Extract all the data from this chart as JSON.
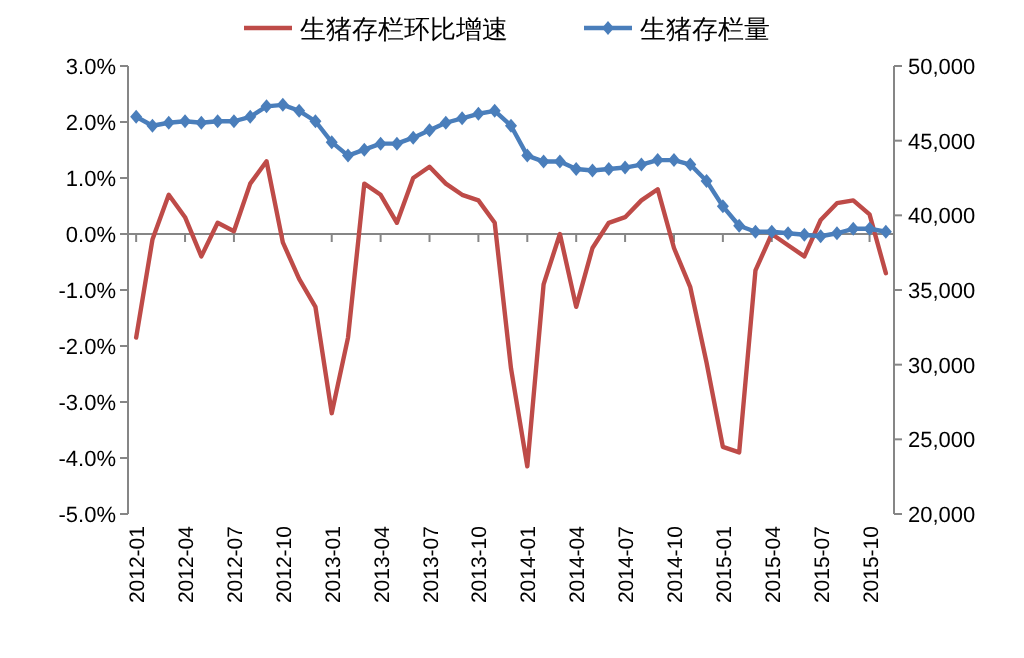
{
  "chart_data": {
    "type": "line",
    "categories": [
      "2012-01",
      null,
      null,
      "2012-04",
      null,
      null,
      "2012-07",
      null,
      null,
      "2012-10",
      null,
      null,
      "2013-01",
      null,
      null,
      "2013-04",
      null,
      null,
      "2013-07",
      null,
      null,
      "2013-10",
      null,
      null,
      "2014-01",
      null,
      null,
      "2014-04",
      null,
      null,
      "2014-07",
      null,
      null,
      "2014-10",
      null,
      null,
      "2015-01",
      null,
      null,
      "2015-04",
      null,
      null,
      "2015-07",
      null,
      null,
      "2015-10",
      null
    ],
    "series": [
      {
        "name": "生猪存栏环比增速",
        "color": "#be4b48",
        "marker": "none",
        "values": [
          -1.85,
          -0.1,
          0.7,
          0.3,
          -0.4,
          0.2,
          0.05,
          0.9,
          1.3,
          -0.15,
          -0.8,
          -1.3,
          -3.2,
          -1.85,
          0.9,
          0.7,
          0.2,
          1.0,
          1.2,
          0.9,
          0.7,
          0.6,
          0.2,
          -2.4,
          -4.15,
          -0.9,
          0.0,
          -1.3,
          -0.25,
          0.2,
          0.3,
          0.6,
          0.8,
          -0.25,
          -0.95,
          -2.3,
          -3.8,
          -3.9,
          -0.65,
          0.0,
          -0.2,
          -0.4,
          0.25,
          0.55,
          0.6,
          0.35,
          -0.7
        ]
      },
      {
        "name": "生猪存栏量",
        "color": "#4a7ebb",
        "marker": "diamond",
        "axis": "y2",
        "values": [
          46600,
          46000,
          46200,
          46300,
          46200,
          46300,
          46300,
          46600,
          47300,
          47400,
          47000,
          46300,
          44900,
          44000,
          44400,
          44800,
          44800,
          45200,
          45700,
          46200,
          46500,
          46800,
          47000,
          46000,
          44000,
          43600,
          43600,
          43100,
          43000,
          43100,
          43200,
          43400,
          43700,
          43700,
          43400,
          42300,
          40600,
          39300,
          38900,
          38900,
          38800,
          38700,
          38600,
          38800,
          39100,
          39100,
          38900
        ]
      }
    ],
    "ylim": [
      -5,
      3
    ],
    "yticks": [
      {
        "value": -5,
        "label": "-5.0%"
      },
      {
        "value": -4,
        "label": "-4.0%"
      },
      {
        "value": -3,
        "label": "-3.0%"
      },
      {
        "value": -2,
        "label": "-2.0%"
      },
      {
        "value": -1,
        "label": "-1.0%"
      },
      {
        "value": 0,
        "label": "0.0%"
      },
      {
        "value": 1,
        "label": "1.0%"
      },
      {
        "value": 2,
        "label": "2.0%"
      },
      {
        "value": 3,
        "label": "3.0%"
      }
    ],
    "y2lim": [
      20000,
      50000
    ],
    "y2ticks": [
      {
        "value": 20000,
        "label": "20,000"
      },
      {
        "value": 25000,
        "label": "25,000"
      },
      {
        "value": 30000,
        "label": "30,000"
      },
      {
        "value": 35000,
        "label": "35,000"
      },
      {
        "value": 40000,
        "label": "40,000"
      },
      {
        "value": 45000,
        "label": "45,000"
      },
      {
        "value": 50000,
        "label": "50,000"
      }
    ],
    "legend": "top"
  }
}
